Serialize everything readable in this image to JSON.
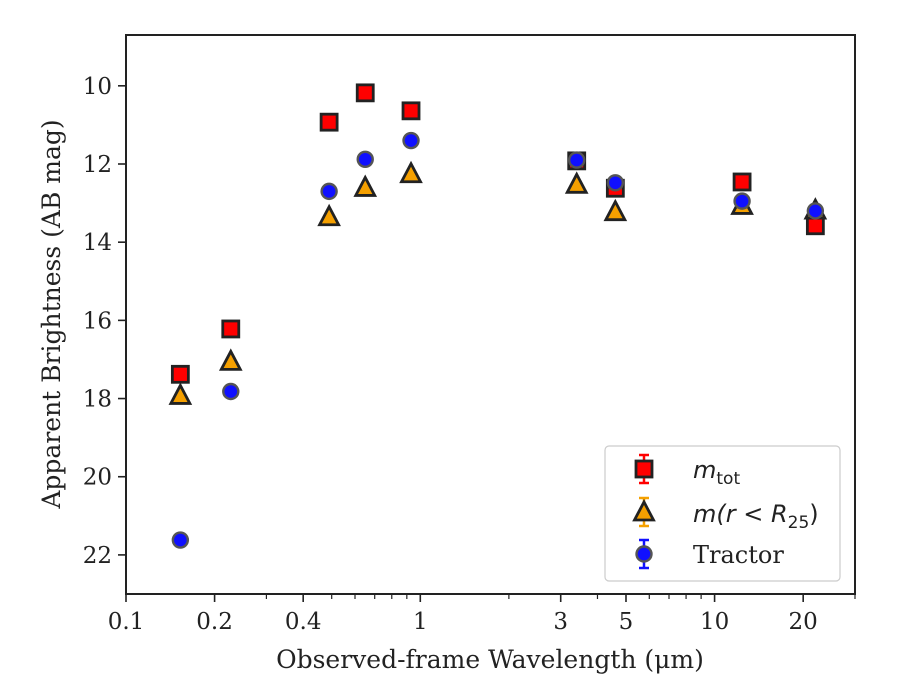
{
  "chart_data": {
    "type": "scatter",
    "title": "",
    "xlabel": "Observed-frame Wavelength (μm)",
    "ylabel": "Apparent Brightness (AB mag)",
    "xscale": "log",
    "xlim": [
      0.1,
      30
    ],
    "ylim": [
      23,
      8.7
    ],
    "y_inverted": true,
    "grid": false,
    "legend_position": "bottom-right",
    "x_ticks": [
      {
        "value": 0.1,
        "label": "0.1"
      },
      {
        "value": 0.2,
        "label": "0.2"
      },
      {
        "value": 0.4,
        "label": "0.4"
      },
      {
        "value": 1,
        "label": "1"
      },
      {
        "value": 3,
        "label": "3"
      },
      {
        "value": 5,
        "label": "5"
      },
      {
        "value": 10,
        "label": "10"
      },
      {
        "value": 20,
        "label": "20"
      }
    ],
    "y_ticks": [
      {
        "value": 10,
        "label": "10"
      },
      {
        "value": 12,
        "label": "12"
      },
      {
        "value": 14,
        "label": "14"
      },
      {
        "value": 16,
        "label": "16"
      },
      {
        "value": 18,
        "label": "18"
      },
      {
        "value": 20,
        "label": "20"
      },
      {
        "value": 22,
        "label": "22"
      }
    ],
    "series": [
      {
        "name": "m_tot",
        "legend_main": "m",
        "legend_sub": "tot",
        "marker": "square",
        "color": "#ff0000",
        "points": [
          {
            "x": 0.153,
            "y": 17.38
          },
          {
            "x": 0.227,
            "y": 16.22
          },
          {
            "x": 0.49,
            "y": 10.93
          },
          {
            "x": 0.65,
            "y": 10.18
          },
          {
            "x": 0.93,
            "y": 10.64
          },
          {
            "x": 3.4,
            "y": 11.92
          },
          {
            "x": 4.6,
            "y": 12.62
          },
          {
            "x": 12.4,
            "y": 12.46
          },
          {
            "x": 22.0,
            "y": 13.58
          }
        ]
      },
      {
        "name": "m(r < R25)",
        "legend_main": "m(r < R",
        "legend_sub": "25",
        "legend_tail": ")",
        "marker": "triangle",
        "color": "#f5a000",
        "points": [
          {
            "x": 0.153,
            "y": 17.92
          },
          {
            "x": 0.227,
            "y": 17.05
          },
          {
            "x": 0.49,
            "y": 13.35
          },
          {
            "x": 0.65,
            "y": 12.6
          },
          {
            "x": 0.93,
            "y": 12.25
          },
          {
            "x": 3.4,
            "y": 12.52
          },
          {
            "x": 4.6,
            "y": 13.22
          },
          {
            "x": 12.4,
            "y": 13.06
          },
          {
            "x": 22.0,
            "y": 13.18
          }
        ]
      },
      {
        "name": "Tractor",
        "marker": "circle",
        "color": "#1010ff",
        "points": [
          {
            "x": 0.153,
            "y": 21.62
          },
          {
            "x": 0.227,
            "y": 17.82
          },
          {
            "x": 0.49,
            "y": 12.7
          },
          {
            "x": 0.65,
            "y": 11.88
          },
          {
            "x": 0.93,
            "y": 11.4
          },
          {
            "x": 3.4,
            "y": 11.9
          },
          {
            "x": 4.6,
            "y": 12.48
          },
          {
            "x": 12.4,
            "y": 12.95
          },
          {
            "x": 22.0,
            "y": 13.2
          }
        ]
      }
    ]
  }
}
